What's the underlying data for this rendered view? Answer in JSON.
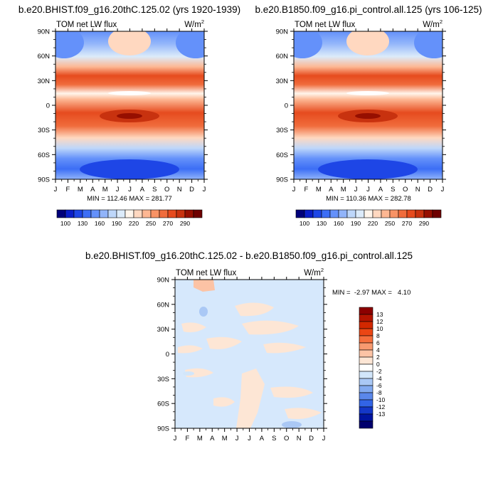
{
  "chart_data": [
    {
      "type": "heatmap",
      "title": "b.e20.BHIST.f09_g16.20thC.125.02 (yrs 1920-1939)",
      "subtitle_left": "TOM net LW flux",
      "units": "W/m",
      "units_sup": "2",
      "x_tick_labels": [
        "J",
        "F",
        "M",
        "A",
        "M",
        "J",
        "J",
        "A",
        "S",
        "O",
        "N",
        "D",
        "J"
      ],
      "y_tick_labels": [
        "90N",
        "60N",
        "30N",
        "0",
        "30S",
        "60S",
        "90S"
      ],
      "stats": "MIN = 112.46 MAX = 281.77",
      "min": 112.46,
      "max": 281.77,
      "colorbar": {
        "orientation": "horizontal",
        "labels": [
          "100",
          "130",
          "160",
          "190",
          "220",
          "250",
          "270",
          "290"
        ],
        "colors": [
          "#00007a",
          "#0a1ec8",
          "#1e46e6",
          "#3c6ef5",
          "#6491fa",
          "#91b4fa",
          "#bed7fa",
          "#dcebfa",
          "#fff5eb",
          "#ffd8c0",
          "#fdb793",
          "#f89365",
          "#f06c3c",
          "#e64b1e",
          "#c8320f",
          "#960f00",
          "#6e0000"
        ]
      }
    },
    {
      "type": "heatmap",
      "title": "b.e20.B1850.f09_g16.pi_control.all.125 (yrs 106-125)",
      "subtitle_left": "TOM net LW flux",
      "units": "W/m",
      "units_sup": "2",
      "x_tick_labels": [
        "J",
        "F",
        "M",
        "A",
        "M",
        "J",
        "J",
        "A",
        "S",
        "O",
        "N",
        "D",
        "J"
      ],
      "y_tick_labels": [
        "90N",
        "60N",
        "30N",
        "0",
        "30S",
        "60S",
        "90S"
      ],
      "stats": "MIN = 110.36 MAX = 282.78",
      "min": 110.36,
      "max": 282.78,
      "colorbar": {
        "orientation": "horizontal",
        "labels": [
          "100",
          "130",
          "160",
          "190",
          "220",
          "250",
          "270",
          "290"
        ]
      }
    },
    {
      "type": "heatmap",
      "title": "b.e20.BHIST.f09_g16.20thC.125.02 - b.e20.B1850.f09_g16.pi_control.all.125",
      "subtitle_left": "TOM net LW flux",
      "units": "W/m",
      "units_sup": "2",
      "x_tick_labels": [
        "J",
        "F",
        "M",
        "A",
        "M",
        "J",
        "J",
        "A",
        "S",
        "O",
        "N",
        "D",
        "J"
      ],
      "y_tick_labels": [
        "90N",
        "60N",
        "30N",
        "0",
        "30S",
        "60S",
        "90S"
      ],
      "stats": "MIN =  -2.97 MAX =   4.10",
      "min": -2.97,
      "max": 4.1,
      "colorbar": {
        "orientation": "vertical",
        "labels": [
          "13",
          "12",
          "10",
          "8",
          "6",
          "4",
          "2",
          "0",
          "-2",
          "-4",
          "-6",
          "-8",
          "-10",
          "-12",
          "-13"
        ],
        "colors": [
          "#8c0000",
          "#b41400",
          "#d22800",
          "#eb4614",
          "#f56e3c",
          "#f89a70",
          "#fcc3a5",
          "#fde6d5",
          "#ffffff",
          "#d2e6fa",
          "#aac8f5",
          "#82aaf0",
          "#5a87eb",
          "#3264e6",
          "#1437c8",
          "#0014a0",
          "#00006e"
        ]
      }
    }
  ]
}
